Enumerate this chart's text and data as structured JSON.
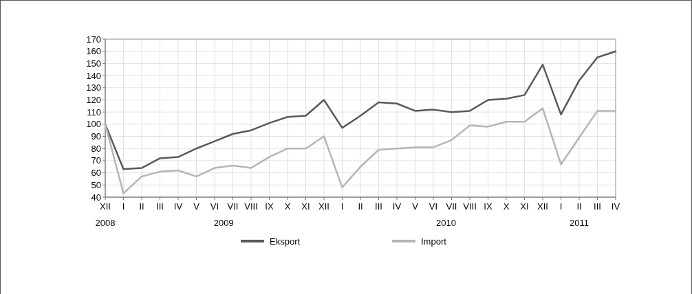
{
  "chart_data": {
    "type": "line",
    "categories": [
      "XII",
      "I",
      "II",
      "III",
      "IV",
      "V",
      "VI",
      "VII",
      "VIII",
      "IX",
      "X",
      "XI",
      "XII",
      "I",
      "II",
      "III",
      "IV",
      "V",
      "VI",
      "VII",
      "VIII",
      "IX",
      "X",
      "XI",
      "XII",
      "I",
      "II",
      "III",
      "IV"
    ],
    "series": [
      {
        "name": "Eksport",
        "color": "#595959",
        "values": [
          100,
          63,
          64,
          72,
          73,
          80,
          86,
          92,
          95,
          101,
          106,
          107,
          120,
          97,
          107,
          118,
          117,
          111,
          112,
          110,
          111,
          120,
          121,
          124,
          149,
          108,
          136,
          155,
          160
        ]
      },
      {
        "name": "Import",
        "color": "#b5b5b5",
        "values": [
          100,
          43,
          57,
          61,
          62,
          57,
          64,
          66,
          64,
          73,
          80,
          80,
          90,
          48,
          65,
          79,
          80,
          81,
          81,
          87,
          99,
          98,
          102,
          102,
          113,
          67,
          89,
          111,
          111
        ]
      }
    ],
    "annotations": [
      "2008",
      "2009",
      "2010",
      "2011"
    ],
    "ylim": [
      40,
      170
    ],
    "yticks": [
      40,
      50,
      60,
      70,
      80,
      90,
      100,
      110,
      120,
      130,
      140,
      150,
      160,
      170
    ],
    "grid": true,
    "legend": "bottom",
    "line_style": "solid",
    "marker": "none"
  }
}
